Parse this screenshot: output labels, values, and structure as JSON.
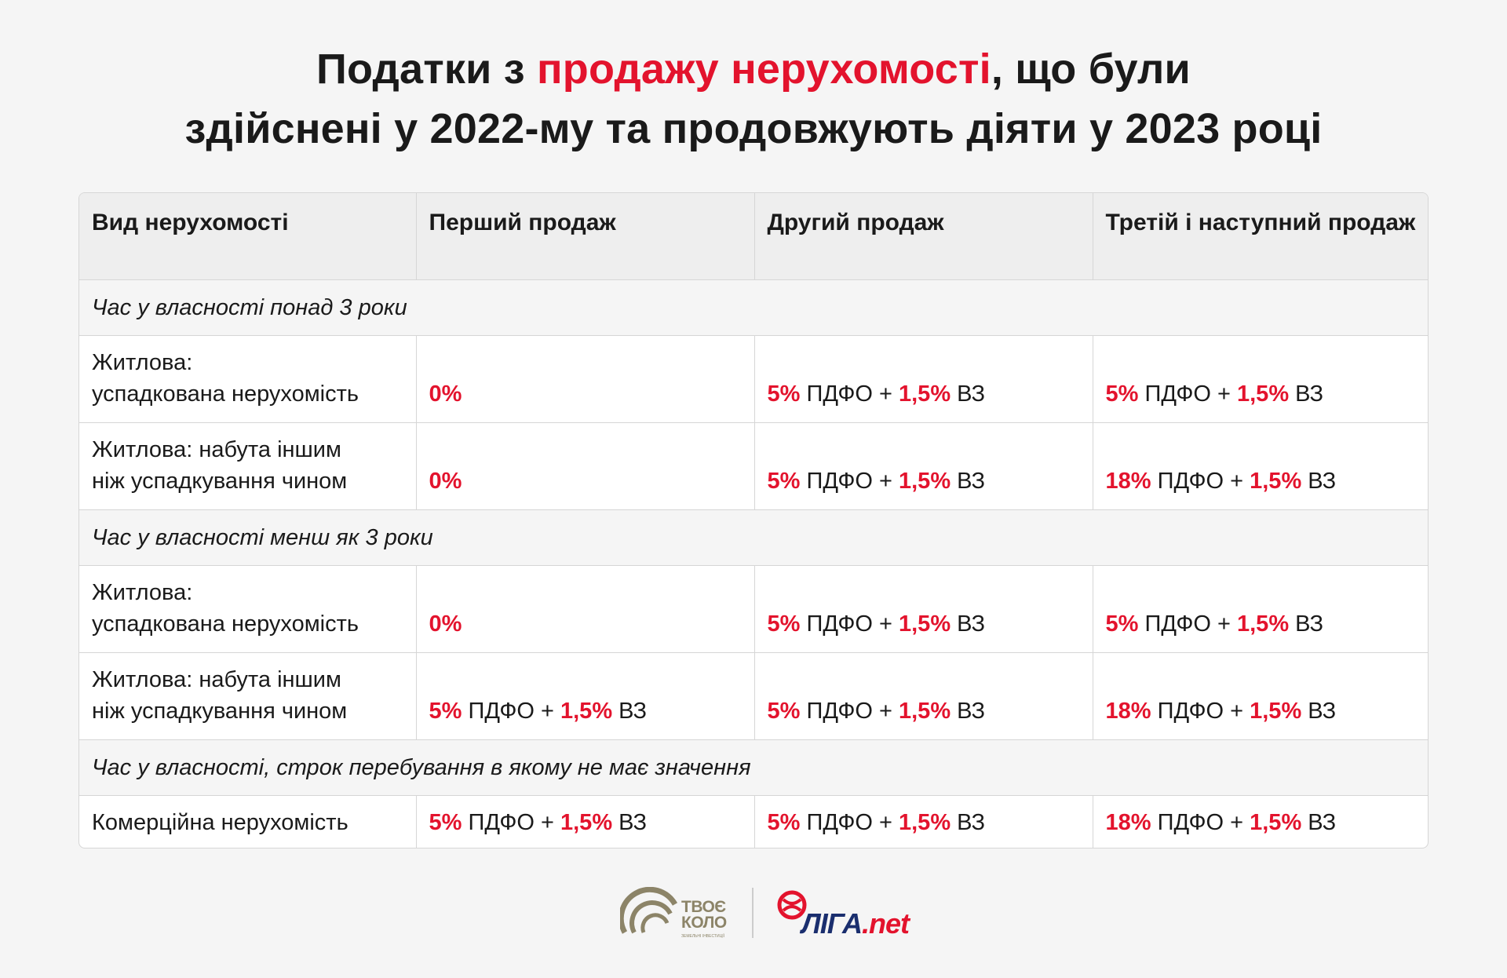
{
  "title": {
    "line1_before": "Податки з ",
    "line1_accent": "продажу нерухомості",
    "line1_after": ", що були",
    "line2": "здійснені у 2022-му та продовжують діяти у 2023 році"
  },
  "colors": {
    "accent": "#e3132d",
    "text": "#1a1a1a",
    "background": "#f5f5f5",
    "header_bg": "#eeeeee",
    "brand_gold": "#8c8468",
    "brand_blue": "#1a2e6e"
  },
  "table": {
    "headers": [
      "Вид нерухомості",
      "Перший продаж",
      "Другий продаж",
      "Третій і наступний продаж"
    ],
    "sections": [
      {
        "label": "Час у власності понад 3 роки",
        "rows": [
          {
            "type_line1": "Житлова:",
            "type_line2": "успадкована нерухомість",
            "cells": [
              {
                "rate": "0%",
                "pdfo": "",
                "plus": "",
                "vz_rate": "",
                "vz": ""
              },
              {
                "rate": "5%",
                "pdfo": " ПДФО",
                "plus": " + ",
                "vz_rate": "1,5%",
                "vz": " ВЗ"
              },
              {
                "rate": "5%",
                "pdfo": " ПДФО",
                "plus": " + ",
                "vz_rate": "1,5%",
                "vz": " ВЗ"
              }
            ]
          },
          {
            "type_line1": "Житлова: набута іншим",
            "type_line2": "ніж успадкування чином",
            "cells": [
              {
                "rate": "0%",
                "pdfo": "",
                "plus": "",
                "vz_rate": "",
                "vz": ""
              },
              {
                "rate": "5%",
                "pdfo": " ПДФО",
                "plus": " + ",
                "vz_rate": "1,5%",
                "vz": " ВЗ"
              },
              {
                "rate": "18%",
                "pdfo": " ПДФО",
                "plus": " + ",
                "vz_rate": "1,5%",
                "vz": " ВЗ"
              }
            ]
          }
        ]
      },
      {
        "label": "Час у власності менш як 3 роки",
        "rows": [
          {
            "type_line1": "Житлова:",
            "type_line2": "успадкована нерухомість",
            "cells": [
              {
                "rate": "0%",
                "pdfo": "",
                "plus": "",
                "vz_rate": "",
                "vz": ""
              },
              {
                "rate": "5%",
                "pdfo": " ПДФО",
                "plus": " + ",
                "vz_rate": "1,5%",
                "vz": " ВЗ"
              },
              {
                "rate": "5%",
                "pdfo": " ПДФО",
                "plus": " + ",
                "vz_rate": "1,5%",
                "vz": " ВЗ"
              }
            ]
          },
          {
            "type_line1": "Житлова: набута іншим",
            "type_line2": "ніж успадкування чином",
            "cells": [
              {
                "rate": "5%",
                "pdfo": " ПДФО",
                "plus": " + ",
                "vz_rate": "1,5%",
                "vz": " ВЗ"
              },
              {
                "rate": "5%",
                "pdfo": " ПДФО",
                "plus": " + ",
                "vz_rate": "1,5%",
                "vz": " ВЗ"
              },
              {
                "rate": "18%",
                "pdfo": " ПДФО",
                "plus": " + ",
                "vz_rate": "1,5%",
                "vz": " ВЗ"
              }
            ]
          }
        ]
      },
      {
        "label": "Час у власності, строк перебування в якому не має значення",
        "rows": [
          {
            "type_line1": "Комерційна нерухомість",
            "type_line2": "",
            "cells": [
              {
                "rate": "5%",
                "pdfo": " ПДФО",
                "plus": " + ",
                "vz_rate": "1,5%",
                "vz": " ВЗ"
              },
              {
                "rate": "5%",
                "pdfo": " ПДФО",
                "plus": " + ",
                "vz_rate": "1,5%",
                "vz": " ВЗ"
              },
              {
                "rate": "18%",
                "pdfo": " ПДФО",
                "plus": " + ",
                "vz_rate": "1,5%",
                "vz": " ВЗ"
              }
            ]
          }
        ]
      }
    ]
  },
  "footer": {
    "tvoe_kolo_line1": "ТВОЄ",
    "tvoe_kolo_line2": "КОЛО",
    "tvoe_kolo_sub": "ЗЕМЕЛЬНІ ІНВЕСТИЦІЇ",
    "liga_name": "ЛІГА",
    "liga_tld": ".net",
    "logo_icons": [
      "tvoe-kolo-arc-icon",
      "liga-ball-icon"
    ]
  }
}
